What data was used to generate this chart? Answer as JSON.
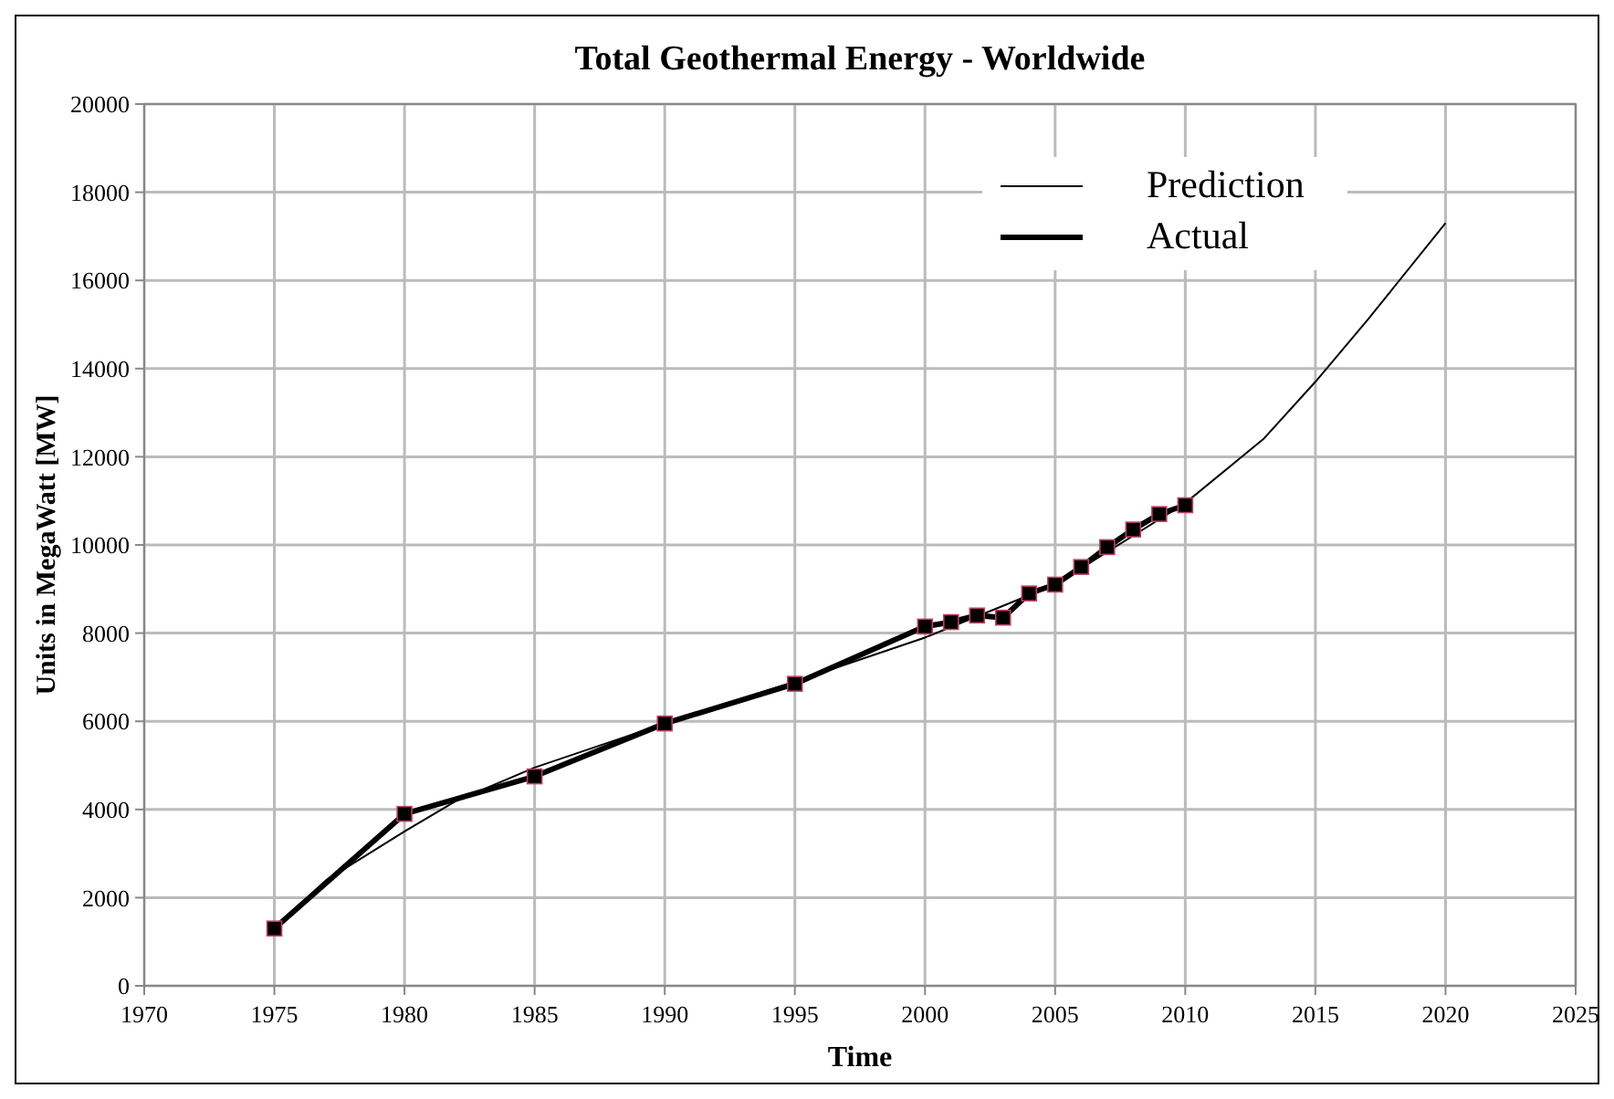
{
  "chart_data": {
    "type": "line",
    "title": "Total Geothermal Energy - Worldwide",
    "xlabel": "Time",
    "ylabel": "Units in MegaWatt [MW]",
    "xlim": [
      1970,
      2025
    ],
    "xticks": [
      1970,
      1975,
      1980,
      1985,
      1990,
      1995,
      2000,
      2005,
      2010,
      2015,
      2020,
      2025
    ],
    "ylim": [
      0,
      20000
    ],
    "yticks": [
      0,
      2000,
      4000,
      6000,
      8000,
      10000,
      12000,
      14000,
      16000,
      18000,
      20000
    ],
    "grid": true,
    "legend": "top right",
    "line_style": "solid",
    "series": [
      {
        "name": "Prediction",
        "color": "#000000",
        "marker": "none",
        "x": [
          1975,
          1977,
          1980,
          1982,
          1985,
          1990,
          1995,
          2000,
          2005,
          2010,
          2013,
          2015,
          2017,
          2020
        ],
        "values": [
          1300,
          2400,
          3500,
          4200,
          4950,
          5950,
          6900,
          7900,
          9100,
          10950,
          12400,
          13700,
          15100,
          17300
        ]
      },
      {
        "name": "Actual",
        "color": "#000000",
        "marker": "square",
        "x": [
          1975,
          1980,
          1985,
          1990,
          1995,
          2000,
          2001,
          2002,
          2003,
          2004,
          2005,
          2006,
          2007,
          2008,
          2009,
          2010
        ],
        "values": [
          1300,
          3900,
          4750,
          5950,
          6850,
          8150,
          8250,
          8400,
          8350,
          8900,
          9100,
          9500,
          9950,
          10350,
          10700,
          10900
        ]
      }
    ]
  }
}
